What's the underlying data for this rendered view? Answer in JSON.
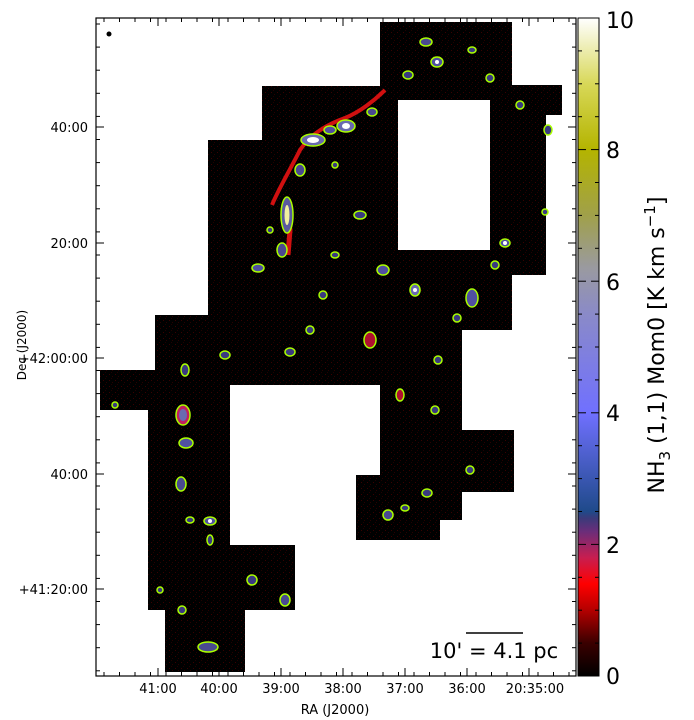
{
  "chart_data": {
    "type": "heatmap",
    "title": "",
    "xlabel": "RA (J2000)",
    "ylabel": "Dec (J2000)",
    "x_ticks": [
      "41:00",
      "40:00",
      "39:00",
      "38:00",
      "37:00",
      "36:00",
      "20:35:00"
    ],
    "y_ticks": [
      "40:00",
      "20:00",
      "+42:00:00",
      "40:00",
      "+41:20:00"
    ],
    "colorbar": {
      "label": "NH3 (1,1) Mom0 [K km s-1]",
      "label_main": "NH",
      "label_sub": "3",
      "label_rest": " (1,1) Mom0 [K km s",
      "label_sup": "−1",
      "label_end": "]",
      "range": [
        0,
        10
      ],
      "ticks": [
        "0",
        "2",
        "4",
        "6",
        "8",
        "10"
      ],
      "colors": [
        "#000000",
        "#3a0000",
        "#b40000",
        "#ff0000",
        "#c81e50",
        "#6a2e7a",
        "#3a3a7a",
        "#1f4a8a",
        "#7070ff",
        "#8a8ac8",
        "#9a9aa0",
        "#a0a04a",
        "#b4b400",
        "#d8d858",
        "#ffffff"
      ]
    },
    "scale_bar": "10' = 4.1 pc",
    "contour_color": "#aaff00",
    "background_color": "#000000"
  }
}
